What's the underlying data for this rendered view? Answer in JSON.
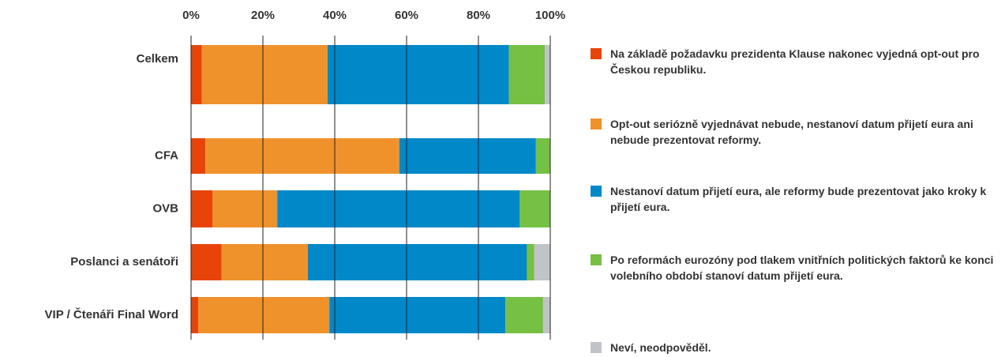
{
  "chart_data": {
    "type": "stacked-bar-horizontal",
    "categories": [
      "Celkem",
      "CFA",
      "OVB",
      "Poslanci a senátoři",
      "VIP / Čtenáři Final Word"
    ],
    "series": [
      {
        "name": "Na základě požadavku prezidenta Klause nakonec vyjedná opt-out pro Českou republiku.",
        "color": "#e8440a",
        "values": [
          3,
          4,
          6,
          8.5,
          2
        ]
      },
      {
        "name": "Opt-out seriózně vyjednávat nebude, nestanoví datum přijetí eura ani nebude prezentovat reformy.",
        "color": "#f0922b",
        "values": [
          35,
          54,
          18,
          24,
          36.5
        ]
      },
      {
        "name": "Nestanoví datum přijetí eura, ale reformy bude prezentovat jako kroky k přijetí eura.",
        "color": "#0088c9",
        "values": [
          50.5,
          38,
          67.5,
          61,
          49
        ]
      },
      {
        "name": "Po reformách eurozóny pod tlakem vnitřních politických faktorů ke konci volebního období stanoví datum přijetí eura.",
        "color": "#76c043",
        "values": [
          10,
          4,
          8.5,
          2,
          10.5
        ]
      },
      {
        "name": "Neví, neodpověděl.",
        "color": "#c0c3c8",
        "values": [
          1.5,
          null,
          null,
          4.5,
          2
        ]
      }
    ],
    "xlim": [
      0,
      100
    ],
    "xticks": [
      {
        "value": 0,
        "label": "0%"
      },
      {
        "value": 20,
        "label": "20%"
      },
      {
        "value": 40,
        "label": "40%"
      },
      {
        "value": 60,
        "label": "60%"
      },
      {
        "value": 80,
        "label": "80%"
      },
      {
        "value": 100,
        "label": "100%"
      }
    ],
    "grid": true,
    "legend": "right"
  }
}
